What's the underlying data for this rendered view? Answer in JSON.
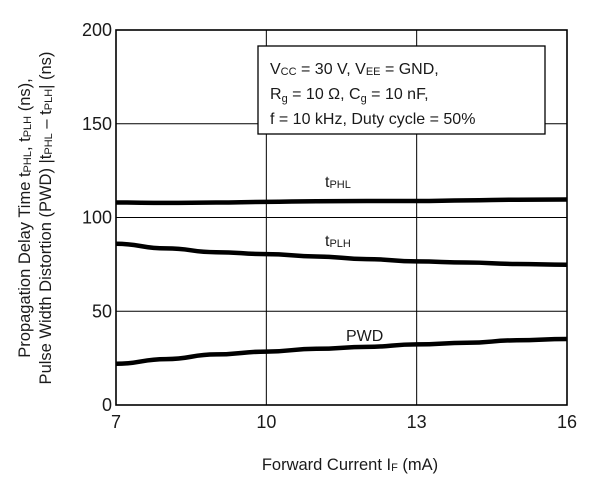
{
  "chart_data": {
    "type": "line",
    "xlim": [
      7,
      16
    ],
    "ylim": [
      0,
      200
    ],
    "x_ticks": [
      "7",
      "10",
      "13",
      "16"
    ],
    "y_ticks": [
      "0",
      "50",
      "100",
      "150",
      "200"
    ],
    "grid": true,
    "xlabel": {
      "main": "Forward Current  I",
      "sub": "F",
      "unit": " (mA)"
    },
    "ylabel": {
      "line1": "Propagation Delay Time  t",
      "line1_sub1": "PHL",
      "line1_mid": ", t",
      "line1_sub2": "PLH",
      "line1_end": " (ns),",
      "line2": "Pulse Width Distortion (PWD) |t",
      "line2_sub1": "PHL",
      "line2_mid": " – t",
      "line2_sub2": "PLH",
      "line2_end": "| (ns)"
    },
    "conditions": {
      "line1": {
        "p1": "V",
        "s1": "CC",
        "p2": " = 30 V, V",
        "s2": "EE",
        "p3": " = GND,"
      },
      "line2": {
        "p1": "R",
        "s1": "g",
        "p2": " = 10 Ω, C",
        "s2": "g",
        "p3": " = 10 nF,"
      },
      "line3": {
        "p1": "f = 10 kHz, Duty cycle = 50%"
      }
    },
    "series": [
      {
        "label_main": "t",
        "label_sub": "PHL",
        "x": [
          7,
          8,
          9,
          10,
          11,
          12,
          13,
          14,
          15,
          16
        ],
        "y": [
          108,
          107.8,
          108,
          108.3,
          108.7,
          108.8,
          108.8,
          109.1,
          109.5,
          109.6
        ]
      },
      {
        "label_main": "t",
        "label_sub": "PLH",
        "x": [
          7,
          8,
          9,
          10,
          11,
          12,
          13,
          14,
          15,
          16
        ],
        "y": [
          86,
          83.5,
          81.5,
          80.5,
          79.2,
          77.8,
          76.6,
          76,
          75.2,
          74.8
        ]
      },
      {
        "label_main": "PWD",
        "label_sub": "",
        "x": [
          7,
          8,
          9,
          10,
          11,
          12,
          13,
          14,
          15,
          16
        ],
        "y": [
          22,
          24.5,
          27,
          28.5,
          30,
          31,
          32.3,
          33.2,
          34.5,
          35.2
        ]
      }
    ]
  }
}
